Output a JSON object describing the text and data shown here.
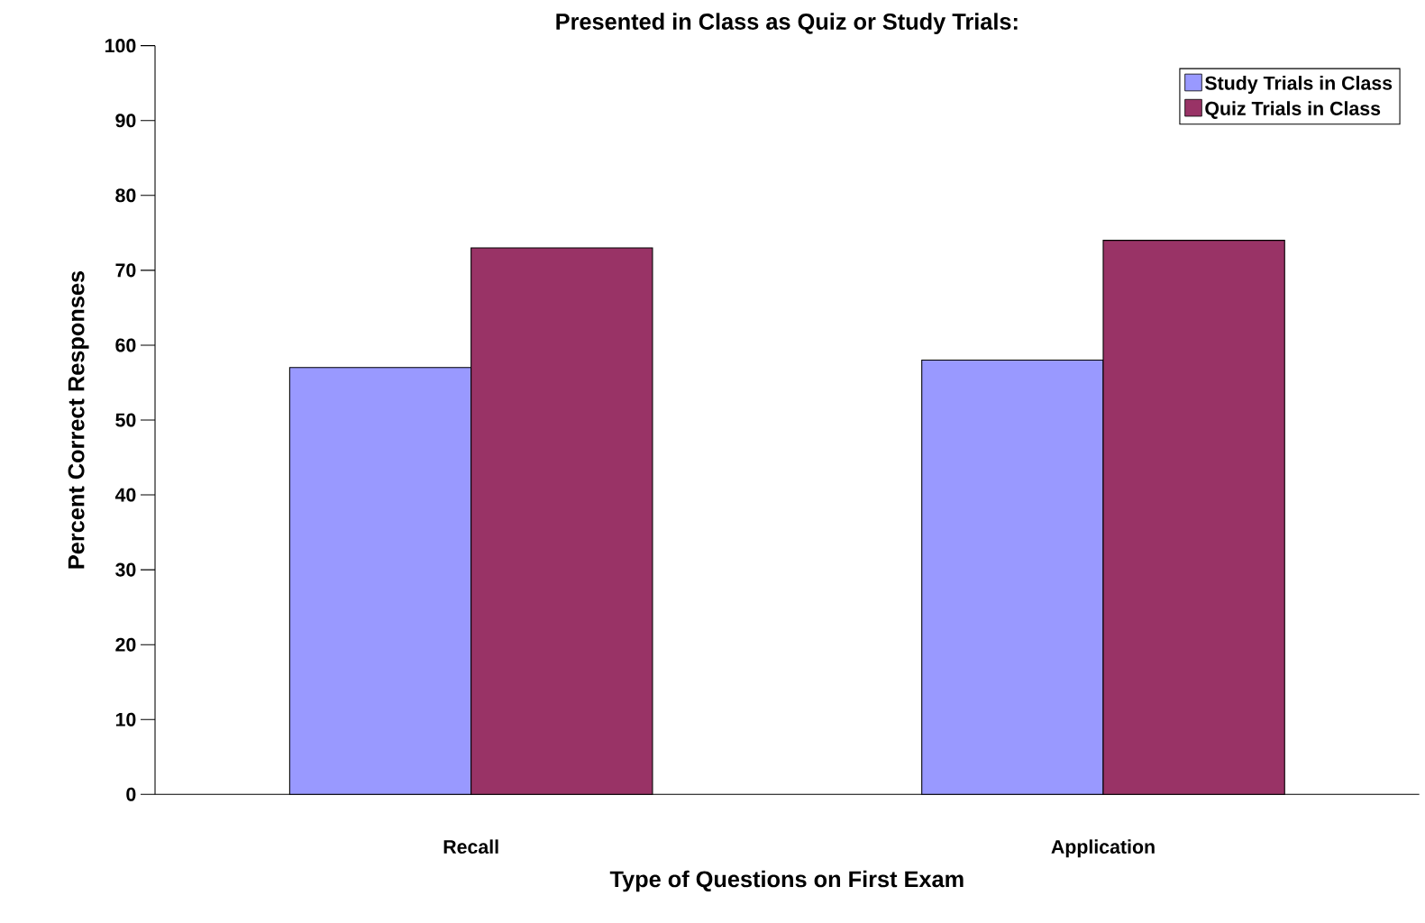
{
  "chart_data": {
    "type": "bar",
    "title": "Presented in Class as Quiz or Study Trials:",
    "xlabel": "Type of Questions on First Exam",
    "ylabel": "Percent Correct Responses",
    "categories": [
      "Recall",
      "Application"
    ],
    "series": [
      {
        "name": "Study Trials in Class",
        "color": "#9999ff",
        "values": [
          57,
          58
        ]
      },
      {
        "name": "Quiz Trials in Class",
        "color": "#993366",
        "values": [
          73,
          74
        ]
      }
    ],
    "ylim": [
      0,
      100
    ],
    "yticks": [
      0,
      10,
      20,
      30,
      40,
      50,
      60,
      70,
      80,
      90,
      100
    ],
    "legend": "top right"
  }
}
